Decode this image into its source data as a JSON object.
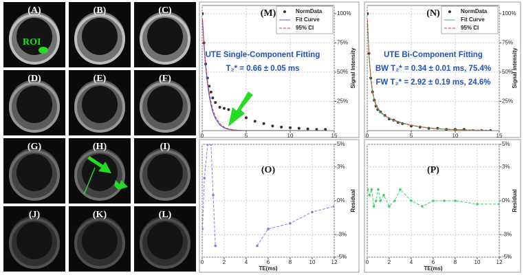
{
  "image_panels": [
    "(A)",
    "(B)",
    "(C)",
    "(D)",
    "(E)",
    "(F)",
    "(G)",
    "(H)",
    "(I)",
    "(J)",
    "(K)",
    "(L)"
  ],
  "roi_label": "ROI",
  "chart_data": [
    {
      "type": "line",
      "title": "(M)",
      "annotations": [
        "UTE Single-Component Fitting",
        "T₂* = 0.66 ± 0.05 ms"
      ],
      "ylabel": "Signal Intensity",
      "x": [
        0.03,
        0.2,
        0.4,
        0.6,
        0.8,
        1.0,
        1.2,
        1.5,
        2,
        2.5,
        3,
        3.5,
        4,
        5,
        6,
        7,
        8,
        9,
        10,
        11,
        12,
        13,
        14
      ],
      "series": [
        {
          "name": "NormData",
          "color": "#333333",
          "style": "markers",
          "values": [
            100,
            75,
            57,
            45,
            38,
            33,
            28,
            24,
            20,
            19,
            18,
            16,
            14,
            11,
            8,
            6,
            4,
            3,
            2.5,
            2,
            1.5,
            1,
            1
          ]
        },
        {
          "name": "Fit Curve",
          "color": "#4a5cd0",
          "style": "line",
          "values": [
            95.6,
            73.9,
            54.6,
            40.3,
            29.8,
            22,
            16.2,
            10.3,
            4.8,
            2.3,
            1.1,
            0.5,
            0.2,
            0,
            0,
            0,
            0,
            0,
            0,
            0,
            0,
            0,
            0
          ]
        },
        {
          "name": "95% CI",
          "color": "#e03030",
          "style": "dashed",
          "values": [
            95.9,
            75.5,
            57,
            43,
            32.4,
            24.5,
            18.4,
            12.1,
            6,
            2.9,
            1.5,
            0.7,
            0.4,
            0,
            0,
            0,
            0,
            0,
            0,
            0,
            0,
            0,
            0
          ]
        }
      ],
      "xlim": [
        0,
        15
      ],
      "ylim": [
        0,
        107
      ],
      "xticks": [
        0,
        5,
        10,
        15
      ],
      "yticks": [
        {
          "value": 25,
          "label": "25%"
        },
        {
          "value": 50,
          "label": "50%"
        },
        {
          "value": 75,
          "label": "75%"
        },
        {
          "value": 100,
          "label": "100%"
        }
      ],
      "grid": true,
      "legend": "upper right"
    },
    {
      "type": "line",
      "title": "(N)",
      "annotations": [
        "UTE Bi-Component Fitting",
        "BW T₂* = 0.34 ± 0.01 ms, 75.4%",
        "FW T₂* = 2.92 ± 0.19 ms, 24.6%"
      ],
      "ylabel": "Signal Intensity",
      "x": [
        0.03,
        0.2,
        0.4,
        0.6,
        0.8,
        1.0,
        1.2,
        1.5,
        2,
        2.5,
        3,
        3.5,
        4,
        5,
        6,
        7,
        8,
        9,
        10,
        11,
        12,
        13,
        14
      ],
      "series": [
        {
          "name": "NormData",
          "color": "#333333",
          "style": "markers",
          "values": [
            100,
            66,
            45,
            33,
            26,
            21,
            18,
            16,
            13,
            10,
            9,
            7,
            6,
            4,
            3,
            2,
            2,
            1,
            1,
            1,
            0,
            0,
            0
          ]
        },
        {
          "name": "Fit Curve",
          "color": "#40c060",
          "style": "line",
          "values": [
            93.4,
            64.9,
            44.7,
            32.9,
            25.9,
            21.5,
            18.5,
            15.6,
            12.6,
            10.5,
            8.8,
            7.4,
            6.3,
            4.5,
            3.2,
            2.2,
            1.6,
            1.1,
            0.8,
            0.6,
            0.4,
            0.3,
            0.2
          ]
        },
        {
          "name": "95% CI",
          "color": "#e03030",
          "style": "dashed",
          "values": [
            95,
            66,
            46,
            34,
            27,
            22.3,
            19.2,
            16.2,
            13.1,
            10.9,
            9.2,
            7.7,
            6.6,
            4.7,
            3.4,
            2.4,
            1.7,
            1.2,
            0.9,
            0.7,
            0.5,
            0.4,
            0.3
          ]
        }
      ],
      "xlim": [
        0,
        15
      ],
      "ylim": [
        0,
        107
      ],
      "xticks": [
        0,
        5,
        10,
        15
      ],
      "yticks": [
        {
          "value": 25,
          "label": "25%"
        },
        {
          "value": 50,
          "label": "50%"
        },
        {
          "value": 75,
          "label": "75%"
        },
        {
          "value": 100,
          "label": "100%"
        }
      ],
      "grid": true,
      "legend": "upper right"
    },
    {
      "type": "line",
      "title": "(O)",
      "ylabel": "Residual",
      "xlabel": "TE(ms)",
      "x": [
        0.03,
        0.2,
        0.5,
        0.8,
        1.0,
        1.2,
        3,
        5,
        6,
        8,
        10,
        12
      ],
      "series": [
        {
          "color": "#8080e0",
          "style": "dashed-markers",
          "values": [
            -2.5,
            2,
            5,
            5,
            0.5,
            -4,
            null,
            -4,
            -2.5,
            -2,
            -1,
            -0.5
          ]
        }
      ],
      "xlim": [
        0,
        12
      ],
      "ylim": [
        -5,
        5
      ],
      "xticks": [
        0,
        2,
        4,
        6,
        8,
        10,
        12
      ],
      "yticks": [
        {
          "value": -5,
          "label": "-5%"
        },
        {
          "value": -3,
          "label": "-3%"
        },
        {
          "value": 0,
          "label": "0%"
        },
        {
          "value": 3,
          "label": "3%"
        },
        {
          "value": 5,
          "label": "5%"
        }
      ],
      "grid": true
    },
    {
      "type": "line",
      "title": "(P)",
      "ylabel": "Residual",
      "xlabel": "TE(ms)",
      "x": [
        0.03,
        0.2,
        0.4,
        0.6,
        0.8,
        1.0,
        1.2,
        1.5,
        2,
        2.5,
        3,
        4,
        5,
        6,
        7,
        8,
        10,
        12
      ],
      "series": [
        {
          "color": "#40d070",
          "style": "dashed-markers",
          "values": [
            1,
            0.5,
            1,
            -0.5,
            0,
            1,
            0,
            0.5,
            -0.5,
            0,
            1,
            0,
            -0.5,
            0,
            0,
            0,
            -0.3,
            -0.3
          ]
        }
      ],
      "xlim": [
        0,
        12
      ],
      "ylim": [
        -5,
        5
      ],
      "xticks": [
        0,
        2,
        4,
        6,
        8,
        10,
        12
      ],
      "yticks": [
        {
          "value": -5,
          "label": "-5%"
        },
        {
          "value": -3,
          "label": "-3%"
        },
        {
          "value": 0,
          "label": "0%"
        },
        {
          "value": 3,
          "label": "3%"
        },
        {
          "value": 5,
          "label": "5%"
        }
      ],
      "grid": true
    }
  ]
}
